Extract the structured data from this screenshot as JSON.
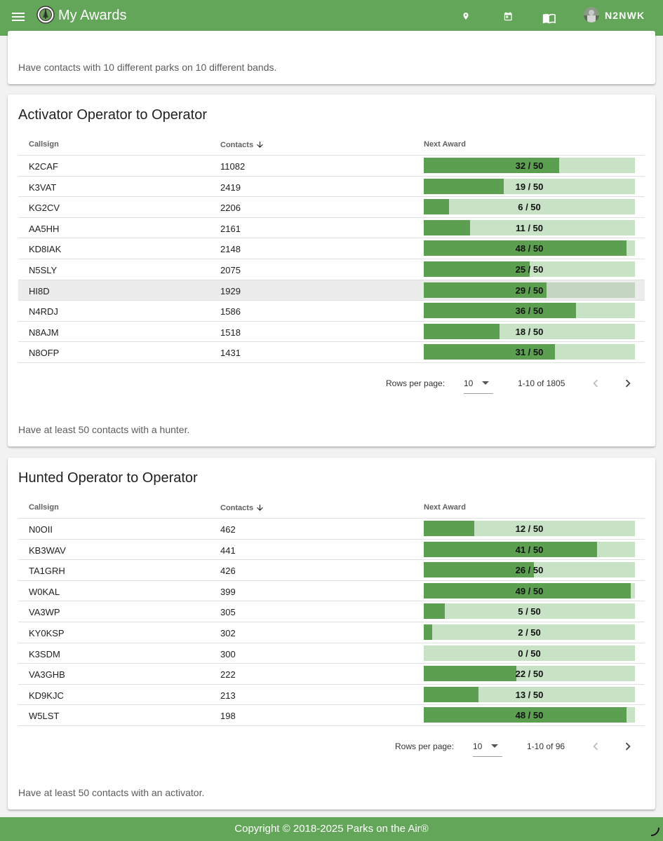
{
  "header": {
    "title": "My Awards",
    "username": "N2NWK",
    "colors": {
      "bar": "#64a659",
      "fill": "#5c9f51",
      "track": "#c8e2c6"
    }
  },
  "top_card": {
    "description": "Have contacts with 10 different parks on 10 different bands."
  },
  "activator_section": {
    "title": "Activator Operator to Operator",
    "columns": {
      "callsign": "Callsign",
      "contacts": "Contacts",
      "next_award": "Next Award"
    },
    "rows": [
      {
        "callsign": "K2CAF",
        "contacts": "11082",
        "progress": "32 / 50",
        "value": 32
      },
      {
        "callsign": "K3VAT",
        "contacts": "2419",
        "progress": "19 / 50",
        "value": 19
      },
      {
        "callsign": "KG2CV",
        "contacts": "2206",
        "progress": "6 / 50",
        "value": 6
      },
      {
        "callsign": "AA5HH",
        "contacts": "2161",
        "progress": "11 / 50",
        "value": 11
      },
      {
        "callsign": "KD8IAK",
        "contacts": "2148",
        "progress": "48 / 50",
        "value": 48
      },
      {
        "callsign": "N5SLY",
        "contacts": "2075",
        "progress": "25 / 50",
        "value": 25
      },
      {
        "callsign": "HI8D",
        "contacts": "1929",
        "progress": "29 / 50",
        "value": 29
      },
      {
        "callsign": "N4RDJ",
        "contacts": "1586",
        "progress": "36 / 50",
        "value": 36
      },
      {
        "callsign": "N8AJM",
        "contacts": "1518",
        "progress": "18 / 50",
        "value": 18
      },
      {
        "callsign": "N8OFP",
        "contacts": "1431",
        "progress": "31 / 50",
        "value": 31
      }
    ],
    "pagination": {
      "rows_per_page_label": "Rows per page:",
      "rows_per_page": "10",
      "range": "1-10 of 1805"
    },
    "description": "Have at least 50 contacts with a hunter."
  },
  "hunted_section": {
    "title": "Hunted Operator to Operator",
    "columns": {
      "callsign": "Callsign",
      "contacts": "Contacts",
      "next_award": "Next Award"
    },
    "rows": [
      {
        "callsign": "N0OII",
        "contacts": "462",
        "progress": "12 / 50",
        "value": 12
      },
      {
        "callsign": "KB3WAV",
        "contacts": "441",
        "progress": "41 / 50",
        "value": 41
      },
      {
        "callsign": "TA1GRH",
        "contacts": "426",
        "progress": "26 / 50",
        "value": 26
      },
      {
        "callsign": "W0KAL",
        "contacts": "399",
        "progress": "49 / 50",
        "value": 49
      },
      {
        "callsign": "VA3WP",
        "contacts": "305",
        "progress": "5 / 50",
        "value": 5
      },
      {
        "callsign": "KY0KSP",
        "contacts": "302",
        "progress": "2 / 50",
        "value": 2
      },
      {
        "callsign": "K3SDM",
        "contacts": "300",
        "progress": "0 / 50",
        "value": 0
      },
      {
        "callsign": "VA3GHB",
        "contacts": "222",
        "progress": "22 / 50",
        "value": 22
      },
      {
        "callsign": "KD9KJC",
        "contacts": "213",
        "progress": "13 / 50",
        "value": 13
      },
      {
        "callsign": "W5LST",
        "contacts": "198",
        "progress": "48 / 50",
        "value": 48
      }
    ],
    "pagination": {
      "rows_per_page_label": "Rows per page:",
      "rows_per_page": "10",
      "range": "1-10 of 96"
    },
    "description": "Have at least 50 contacts with an activator."
  },
  "award_max": 50,
  "footer": {
    "copyright": "Copyright © 2018-2025 Parks on the Air®"
  }
}
